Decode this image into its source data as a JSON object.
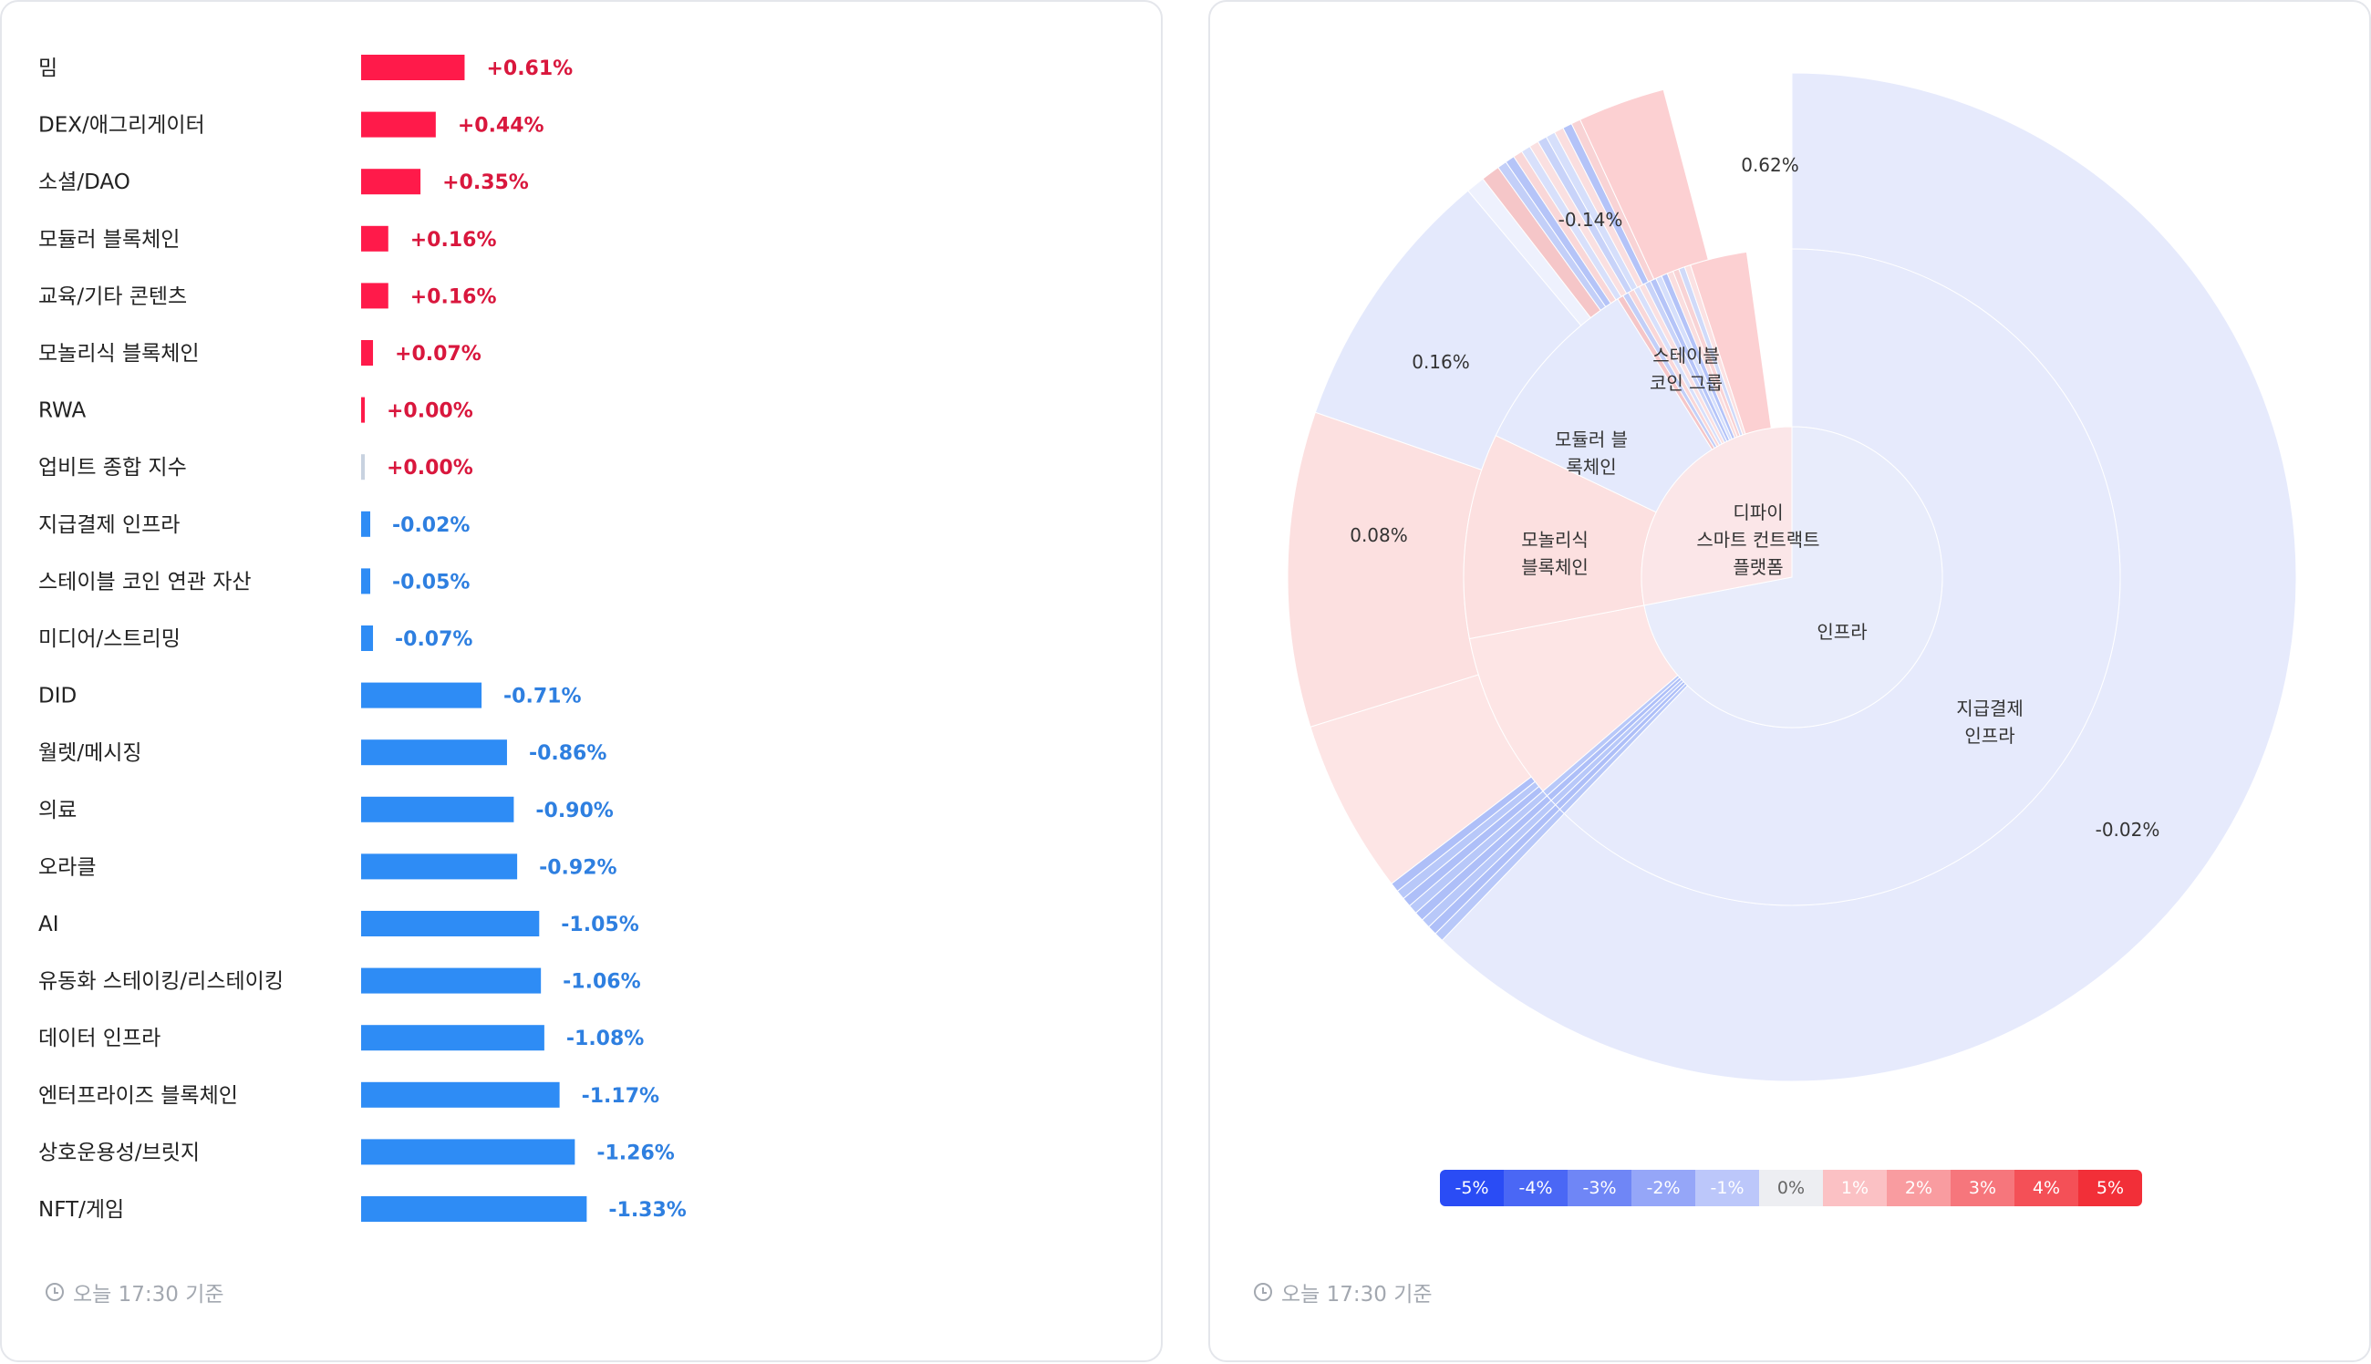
{
  "timestamp": "오늘 17:30 기준",
  "colors": {
    "positive_bar": "#ff1a4a",
    "positive_text": "#d9173d",
    "negative_bar": "#2e8cf5",
    "negative_text": "#2e7fe0",
    "zero_bar": "#c8d2e0"
  },
  "chart_data": [
    {
      "type": "bar",
      "orientation": "horizontal",
      "categories": [
        "밈",
        "DEX/애그리게이터",
        "소셜/DAO",
        "모듈러 블록체인",
        "교육/기타 콘텐츠",
        "모놀리식 블록체인",
        "RWA",
        "업비트 종합 지수",
        "지급결제 인프라",
        "스테이블 코인 연관 자산",
        "미디어/스트리밍",
        "DID",
        "월렛/메시징",
        "의료",
        "오라클",
        "AI",
        "유동화 스테이킹/리스테이킹",
        "데이터 인프라",
        "엔터프라이즈 블록체인",
        "상호운용성/브릿지",
        "NFT/게임"
      ],
      "values": [
        0.61,
        0.44,
        0.35,
        0.16,
        0.16,
        0.07,
        0.0,
        0.0,
        -0.02,
        -0.05,
        -0.07,
        -0.71,
        -0.86,
        -0.9,
        -0.92,
        -1.05,
        -1.06,
        -1.08,
        -1.17,
        -1.26,
        -1.33
      ],
      "value_labels": [
        "+0.61%",
        "+0.44%",
        "+0.35%",
        "+0.16%",
        "+0.16%",
        "+0.07%",
        "+0.00%",
        "+0.00%",
        "-0.02%",
        "-0.05%",
        "-0.07%",
        "-0.71%",
        "-0.86%",
        "-0.90%",
        "-0.92%",
        "-1.05%",
        "-1.06%",
        "-1.08%",
        "-1.17%",
        "-1.26%",
        "-1.33%"
      ]
    },
    {
      "type": "sunburst",
      "inner": [
        {
          "label": "인프라",
          "share": 0.72,
          "color": "#e8ecfb"
        },
        {
          "label": "디파이 스마트 컨트랙트 플랫폼",
          "share": 0.28,
          "color": "#fbe6e8"
        }
      ],
      "middle": [
        {
          "label": "지급결제 인프라",
          "share": 0.622,
          "color": "#e6eafc"
        },
        {
          "label": "",
          "share": 0.003,
          "color": "#b8c8f9"
        },
        {
          "label": "",
          "share": 0.003,
          "color": "#aebff8"
        },
        {
          "label": "",
          "share": 0.003,
          "color": "#b8c8f9"
        },
        {
          "label": "",
          "share": 0.003,
          "color": "#aebff8"
        },
        {
          "label": "",
          "share": 0.003,
          "color": "#b8c8f9"
        },
        {
          "label": "모놀리식 블록체인",
          "share": 0.083,
          "color": "#fde5e5"
        },
        {
          "label": "모듈러 블록체인",
          "share": 0.101,
          "color": "#fce0e0"
        },
        {
          "label": "스테이블 코인 그룹",
          "share": 0.09,
          "color": "#e4e9fc"
        },
        {
          "label": "",
          "share": 0.003,
          "color": "#f5c6c8"
        },
        {
          "label": "",
          "share": 0.003,
          "color": "#c3cff8"
        },
        {
          "label": "",
          "share": 0.003,
          "color": "#f9d7d8"
        },
        {
          "label": "",
          "share": 0.003,
          "color": "#d8e0fb"
        },
        {
          "label": "",
          "share": 0.003,
          "color": "#fae0e1"
        },
        {
          "label": "",
          "share": 0.003,
          "color": "#c8d3f9"
        },
        {
          "label": "",
          "share": 0.003,
          "color": "#b5c4f8"
        },
        {
          "label": "",
          "share": 0.003,
          "color": "#d6dffb"
        },
        {
          "label": "",
          "share": 0.003,
          "color": "#b4c3f8"
        },
        {
          "label": "",
          "share": 0.003,
          "color": "#fadedf"
        },
        {
          "label": "",
          "share": 0.003,
          "color": "#f8d3d5"
        },
        {
          "label": "",
          "share": 0.003,
          "color": "#d0daf9"
        },
        {
          "label": "",
          "share": 0.003,
          "color": "#fbe2e3"
        },
        {
          "label": "",
          "share": 0.028,
          "color": "#fcd0d2"
        }
      ],
      "outer": [
        {
          "label": "-0.02%",
          "share": 0.622,
          "color": "#e6eafc"
        },
        {
          "label": "",
          "share": 0.003,
          "color": "#b8c8f9"
        },
        {
          "label": "",
          "share": 0.003,
          "color": "#aebff8"
        },
        {
          "label": "",
          "share": 0.003,
          "color": "#b8c8f9"
        },
        {
          "label": "",
          "share": 0.003,
          "color": "#aebff8"
        },
        {
          "label": "",
          "share": 0.003,
          "color": "#b8c8f9"
        },
        {
          "label": "",
          "share": 0.003,
          "color": "#aebff8"
        },
        {
          "label": "",
          "share": 0.003,
          "color": "#b8c8f9"
        },
        {
          "label": "",
          "share": 0.003,
          "color": "#aebff8"
        },
        {
          "label": "0.08%",
          "share": 0.056,
          "color": "#fde5e5"
        },
        {
          "label": "0.16%",
          "share": 0.101,
          "color": "#fce0e0"
        },
        {
          "label": "-0.14%",
          "share": 0.086,
          "color": "#e4e9fc"
        },
        {
          "label": "",
          "share": 0.006,
          "color": "#eef1fd"
        },
        {
          "label": "",
          "share": 0.006,
          "color": "#f5c6c8"
        },
        {
          "label": "",
          "share": 0.003,
          "color": "#c3cff8"
        },
        {
          "label": "",
          "share": 0.003,
          "color": "#b5c4f8"
        },
        {
          "label": "",
          "share": 0.003,
          "color": "#f9d7d8"
        },
        {
          "label": "",
          "share": 0.003,
          "color": "#d8e0fb"
        },
        {
          "label": "",
          "share": 0.003,
          "color": "#fae0e1"
        },
        {
          "label": "",
          "share": 0.003,
          "color": "#c8d3f9"
        },
        {
          "label": "",
          "share": 0.003,
          "color": "#d6dffb"
        },
        {
          "label": "",
          "share": 0.003,
          "color": "#fadedf"
        },
        {
          "label": "",
          "share": 0.003,
          "color": "#b4c3f8"
        },
        {
          "label": "",
          "share": 0.003,
          "color": "#f8d3d5"
        },
        {
          "label": "0.62%",
          "share": 0.028,
          "color": "#fcd0d2"
        }
      ],
      "legend": [
        {
          "label": "-5%",
          "color": "#2a4cf5",
          "text": "#ffffff"
        },
        {
          "label": "-4%",
          "color": "#4a67f5",
          "text": "#ffffff"
        },
        {
          "label": "-3%",
          "color": "#6f86f6",
          "text": "#ffffff"
        },
        {
          "label": "-2%",
          "color": "#95a6f8",
          "text": "#ffffff"
        },
        {
          "label": "-1%",
          "color": "#bcc7fa",
          "text": "#ffffff"
        },
        {
          "label": "0%",
          "color": "#edeef2",
          "text": "#666666"
        },
        {
          "label": "1%",
          "color": "#fbc1c4",
          "text": "#ffffff"
        },
        {
          "label": "2%",
          "color": "#f99ca0",
          "text": "#ffffff"
        },
        {
          "label": "3%",
          "color": "#f6767c",
          "text": "#ffffff"
        },
        {
          "label": "4%",
          "color": "#f45057",
          "text": "#ffffff"
        },
        {
          "label": "5%",
          "color": "#f22f38",
          "text": "#ffffff"
        }
      ]
    }
  ]
}
